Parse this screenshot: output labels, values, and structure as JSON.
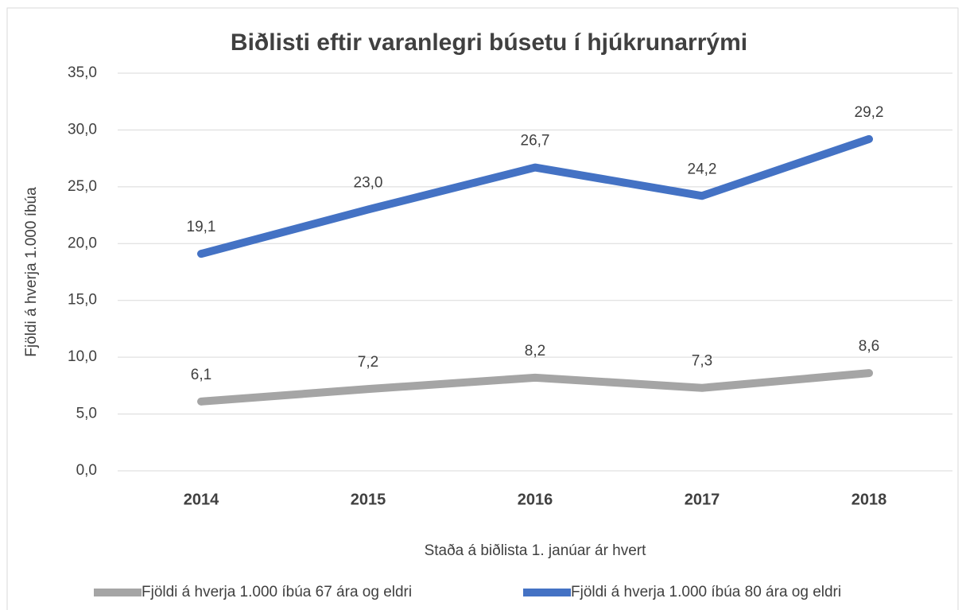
{
  "chart_data": {
    "type": "line",
    "title": "Biðlisti eftir varanlegri búsetu í hjúkrunarrými",
    "x_label": "Staða á biðlista 1. janúar ár hvert",
    "y_label": "Fjöldi á hverja 1.000 íbúa",
    "categories": [
      "2014",
      "2015",
      "2016",
      "2017",
      "2018"
    ],
    "series": [
      {
        "name": "Fjöldi á hverja 1.000 íbúa 67 ára og eldri",
        "color": "#a5a5a5",
        "values": [
          6.1,
          7.2,
          8.2,
          7.3,
          8.6
        ],
        "value_labels": [
          "6,1",
          "7,2",
          "8,2",
          "7,3",
          "8,6"
        ]
      },
      {
        "name": "Fjöldi á hverja 1.000 íbúa 80 ára og eldri",
        "color": "#4472c4",
        "values": [
          19.1,
          23.0,
          26.7,
          24.2,
          29.2
        ],
        "value_labels": [
          "19,1",
          "23,0",
          "26,7",
          "24,2",
          "29,2"
        ]
      }
    ],
    "ylim": [
      0,
      35
    ],
    "yticks": [
      {
        "value": 0,
        "label": "0,0"
      },
      {
        "value": 5,
        "label": "5,0"
      },
      {
        "value": 10,
        "label": "10,0"
      },
      {
        "value": 15,
        "label": "15,0"
      },
      {
        "value": 20,
        "label": "20,0"
      },
      {
        "value": 25,
        "label": "25,0"
      },
      {
        "value": 30,
        "label": "30,0"
      },
      {
        "value": 35,
        "label": "35,0"
      }
    ],
    "grid": true,
    "legend": "bottom"
  }
}
